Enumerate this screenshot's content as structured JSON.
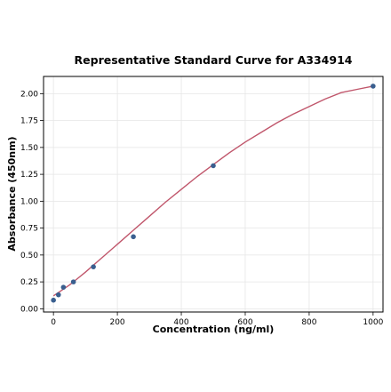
{
  "chart_data": {
    "type": "scatter",
    "title": "Representative Standard Curve for A334914",
    "xlabel": "Concentration (ng/ml)",
    "ylabel": "Absorbance (450nm)",
    "xlim": [
      -31,
      1031
    ],
    "ylim": [
      -0.03,
      2.16
    ],
    "xticks": [
      0,
      200,
      400,
      600,
      800,
      1000
    ],
    "xtick_labels": [
      "0",
      "200",
      "400",
      "600",
      "800",
      "1000"
    ],
    "yticks": [
      0.0,
      0.25,
      0.5,
      0.75,
      1.0,
      1.25,
      1.5,
      1.75,
      2.0
    ],
    "ytick_labels": [
      "0.00",
      "0.25",
      "0.50",
      "0.75",
      "1.00",
      "1.25",
      "1.50",
      "1.75",
      "2.00"
    ],
    "grid": true,
    "series": [
      {
        "type": "scatter",
        "x": [
          0,
          15.6,
          31.2,
          62.5,
          125,
          250,
          500,
          1000
        ],
        "y": [
          0.08,
          0.13,
          0.2,
          0.25,
          0.39,
          0.67,
          1.33,
          2.07
        ]
      },
      {
        "type": "line",
        "x": [
          0,
          25,
          50,
          75,
          100,
          150,
          200,
          250,
          300,
          350,
          400,
          450,
          500,
          550,
          600,
          650,
          700,
          750,
          800,
          850,
          900,
          950,
          1000
        ],
        "y": [
          0.12,
          0.17,
          0.22,
          0.28,
          0.34,
          0.47,
          0.6,
          0.73,
          0.86,
          0.99,
          1.11,
          1.23,
          1.34,
          1.45,
          1.55,
          1.64,
          1.73,
          1.81,
          1.88,
          1.95,
          2.01,
          2.04,
          2.07
        ]
      }
    ],
    "colors": {
      "points": "#3a5f8f",
      "curve": "#c0566b",
      "grid": "#e6e6e6"
    }
  }
}
